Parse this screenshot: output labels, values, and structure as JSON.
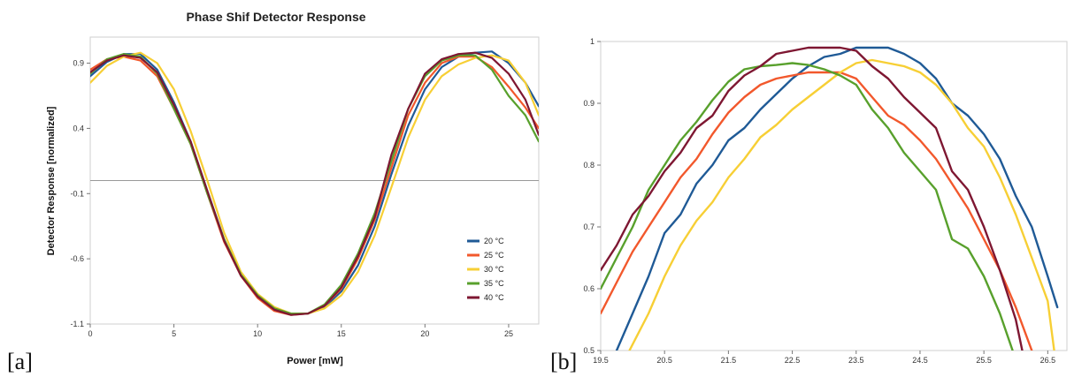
{
  "panels": {
    "a": "[a]",
    "b": "[b]"
  },
  "colors": {
    "20 °C": "#1f5a96",
    "25 °C": "#f2582c",
    "30 °C": "#f7cf35",
    "35 °C": "#58a02c",
    "40 °C": "#7e1732"
  },
  "chart_data": [
    {
      "type": "line",
      "title": "Phase Shif Detector Response",
      "xlabel": "Power [mW]",
      "ylabel": "Detector Response [normalized]",
      "xlim": [
        0,
        26.8
      ],
      "ylim": [
        -1.1,
        1.1
      ],
      "xticks": [
        0,
        5,
        10,
        15,
        20,
        25
      ],
      "yticks": [
        -1.1,
        -0.6,
        -0.1,
        0.4,
        0.9
      ],
      "legend": "bottom-right",
      "grid": false,
      "series": [
        {
          "name": "20 °C",
          "x": [
            0,
            1,
            2,
            3,
            4,
            5,
            6,
            7,
            8,
            9,
            10,
            11,
            12,
            13,
            14,
            15,
            16,
            17,
            18,
            19,
            20,
            21,
            22,
            23,
            24,
            25,
            26,
            26.8
          ],
          "y": [
            0.8,
            0.91,
            0.97,
            0.97,
            0.85,
            0.6,
            0.3,
            -0.08,
            -0.45,
            -0.72,
            -0.88,
            -0.98,
            -1.02,
            -1.02,
            -0.97,
            -0.85,
            -0.65,
            -0.35,
            0.05,
            0.42,
            0.7,
            0.87,
            0.95,
            0.98,
            0.99,
            0.9,
            0.75,
            0.57
          ]
        },
        {
          "name": "25 °C",
          "x": [
            0,
            1,
            2,
            3,
            4,
            5,
            6,
            7,
            8,
            9,
            10,
            11,
            12,
            13,
            14,
            15,
            16,
            17,
            18,
            19,
            20,
            21,
            22,
            23,
            24,
            25,
            26,
            26.8
          ],
          "y": [
            0.85,
            0.93,
            0.95,
            0.92,
            0.8,
            0.55,
            0.28,
            -0.1,
            -0.47,
            -0.73,
            -0.9,
            -1.0,
            -1.03,
            -1.02,
            -0.96,
            -0.83,
            -0.6,
            -0.3,
            0.1,
            0.5,
            0.75,
            0.9,
            0.95,
            0.95,
            0.87,
            0.72,
            0.56,
            0.4
          ]
        },
        {
          "name": "30 °C",
          "x": [
            0,
            1,
            2,
            3,
            4,
            5,
            6,
            7,
            8,
            9,
            10,
            11,
            12,
            13,
            14,
            15,
            16,
            17,
            18,
            19,
            20,
            21,
            22,
            23,
            24,
            25,
            26,
            26.8
          ],
          "y": [
            0.75,
            0.88,
            0.95,
            0.98,
            0.9,
            0.7,
            0.38,
            0.0,
            -0.4,
            -0.7,
            -0.87,
            -0.97,
            -1.02,
            -1.02,
            -0.98,
            -0.88,
            -0.7,
            -0.42,
            -0.05,
            0.33,
            0.62,
            0.8,
            0.89,
            0.94,
            0.96,
            0.92,
            0.75,
            0.5
          ]
        },
        {
          "name": "35 °C",
          "x": [
            0,
            1,
            2,
            3,
            4,
            5,
            6,
            7,
            8,
            9,
            10,
            11,
            12,
            13,
            14,
            15,
            16,
            17,
            18,
            19,
            20,
            21,
            22,
            23,
            24,
            25,
            26,
            26.8
          ],
          "y": [
            0.82,
            0.93,
            0.97,
            0.95,
            0.82,
            0.55,
            0.28,
            -0.1,
            -0.45,
            -0.72,
            -0.88,
            -0.98,
            -1.02,
            -1.02,
            -0.95,
            -0.8,
            -0.56,
            -0.25,
            0.15,
            0.55,
            0.8,
            0.92,
            0.96,
            0.96,
            0.85,
            0.65,
            0.5,
            0.3
          ]
        },
        {
          "name": "40 °C",
          "x": [
            0,
            1,
            2,
            3,
            4,
            5,
            6,
            7,
            8,
            9,
            10,
            11,
            12,
            13,
            14,
            15,
            16,
            17,
            18,
            19,
            20,
            21,
            22,
            23,
            24,
            25,
            26,
            26.8
          ],
          "y": [
            0.83,
            0.92,
            0.96,
            0.94,
            0.83,
            0.58,
            0.3,
            -0.08,
            -0.46,
            -0.73,
            -0.89,
            -0.99,
            -1.03,
            -1.02,
            -0.96,
            -0.82,
            -0.58,
            -0.28,
            0.2,
            0.55,
            0.82,
            0.93,
            0.97,
            0.98,
            0.94,
            0.82,
            0.62,
            0.35
          ]
        }
      ]
    },
    {
      "type": "line",
      "xlim": [
        19.5,
        26.8
      ],
      "ylim": [
        0.5,
        1.0
      ],
      "xticks": [
        19.5,
        20.5,
        21.5,
        22.5,
        23.5,
        24.5,
        25.5,
        26.5
      ],
      "yticks": [
        0.5,
        0.6,
        0.7,
        0.8,
        0.9,
        1
      ],
      "grid": false,
      "series": [
        {
          "name": "20 °C",
          "x": [
            19.75,
            20,
            20.25,
            20.5,
            20.75,
            21,
            21.25,
            21.5,
            21.75,
            22,
            22.25,
            22.5,
            22.75,
            23,
            23.25,
            23.5,
            23.75,
            24,
            24.25,
            24.5,
            24.75,
            25,
            25.25,
            25.5,
            25.75,
            26,
            26.25,
            26.5,
            26.65
          ],
          "y": [
            0.5,
            0.56,
            0.62,
            0.69,
            0.72,
            0.77,
            0.8,
            0.84,
            0.86,
            0.89,
            0.915,
            0.94,
            0.96,
            0.975,
            0.98,
            0.99,
            0.99,
            0.99,
            0.98,
            0.965,
            0.94,
            0.9,
            0.88,
            0.85,
            0.81,
            0.75,
            0.7,
            0.62,
            0.57
          ]
        },
        {
          "name": "25 °C",
          "x": [
            19.5,
            19.75,
            20,
            20.25,
            20.5,
            20.75,
            21,
            21.25,
            21.5,
            21.75,
            22,
            22.25,
            22.5,
            22.75,
            23,
            23.25,
            23.5,
            23.75,
            24,
            24.25,
            24.5,
            24.75,
            25,
            25.25,
            25.5,
            25.75,
            26,
            26.25
          ],
          "y": [
            0.56,
            0.61,
            0.66,
            0.7,
            0.74,
            0.78,
            0.81,
            0.85,
            0.885,
            0.91,
            0.93,
            0.94,
            0.945,
            0.95,
            0.95,
            0.95,
            0.94,
            0.91,
            0.88,
            0.865,
            0.84,
            0.81,
            0.77,
            0.73,
            0.68,
            0.63,
            0.57,
            0.5
          ]
        },
        {
          "name": "30 °C",
          "x": [
            19.95,
            20.25,
            20.5,
            20.75,
            21,
            21.25,
            21.5,
            21.75,
            22,
            22.25,
            22.5,
            22.75,
            23,
            23.25,
            23.5,
            23.75,
            24,
            24.25,
            24.5,
            24.75,
            25,
            25.25,
            25.5,
            25.75,
            26,
            26.25,
            26.5,
            26.6
          ],
          "y": [
            0.5,
            0.56,
            0.62,
            0.67,
            0.71,
            0.74,
            0.78,
            0.81,
            0.845,
            0.865,
            0.89,
            0.91,
            0.93,
            0.95,
            0.965,
            0.97,
            0.965,
            0.96,
            0.95,
            0.93,
            0.9,
            0.86,
            0.83,
            0.78,
            0.72,
            0.65,
            0.58,
            0.5
          ]
        },
        {
          "name": "35 °C",
          "x": [
            19.5,
            19.75,
            20,
            20.25,
            20.5,
            20.75,
            21,
            21.25,
            21.5,
            21.75,
            22,
            22.25,
            22.5,
            22.75,
            23,
            23.25,
            23.5,
            23.75,
            24,
            24.25,
            24.5,
            24.75,
            25,
            25.25,
            25.5,
            25.75,
            25.95
          ],
          "y": [
            0.6,
            0.65,
            0.7,
            0.76,
            0.8,
            0.84,
            0.87,
            0.905,
            0.935,
            0.955,
            0.96,
            0.962,
            0.965,
            0.962,
            0.955,
            0.945,
            0.93,
            0.89,
            0.86,
            0.82,
            0.79,
            0.76,
            0.68,
            0.665,
            0.62,
            0.56,
            0.5
          ]
        },
        {
          "name": "40 °C",
          "x": [
            19.5,
            19.75,
            20,
            20.25,
            20.5,
            20.75,
            21,
            21.25,
            21.5,
            21.75,
            22,
            22.25,
            22.5,
            22.75,
            23,
            23.25,
            23.5,
            23.75,
            24,
            24.25,
            24.5,
            24.75,
            25,
            25.25,
            25.5,
            25.75,
            26,
            26.1
          ],
          "y": [
            0.63,
            0.67,
            0.72,
            0.75,
            0.79,
            0.82,
            0.86,
            0.88,
            0.92,
            0.945,
            0.96,
            0.98,
            0.985,
            0.99,
            0.99,
            0.99,
            0.985,
            0.96,
            0.94,
            0.91,
            0.885,
            0.86,
            0.79,
            0.76,
            0.7,
            0.63,
            0.55,
            0.5
          ]
        }
      ]
    }
  ]
}
